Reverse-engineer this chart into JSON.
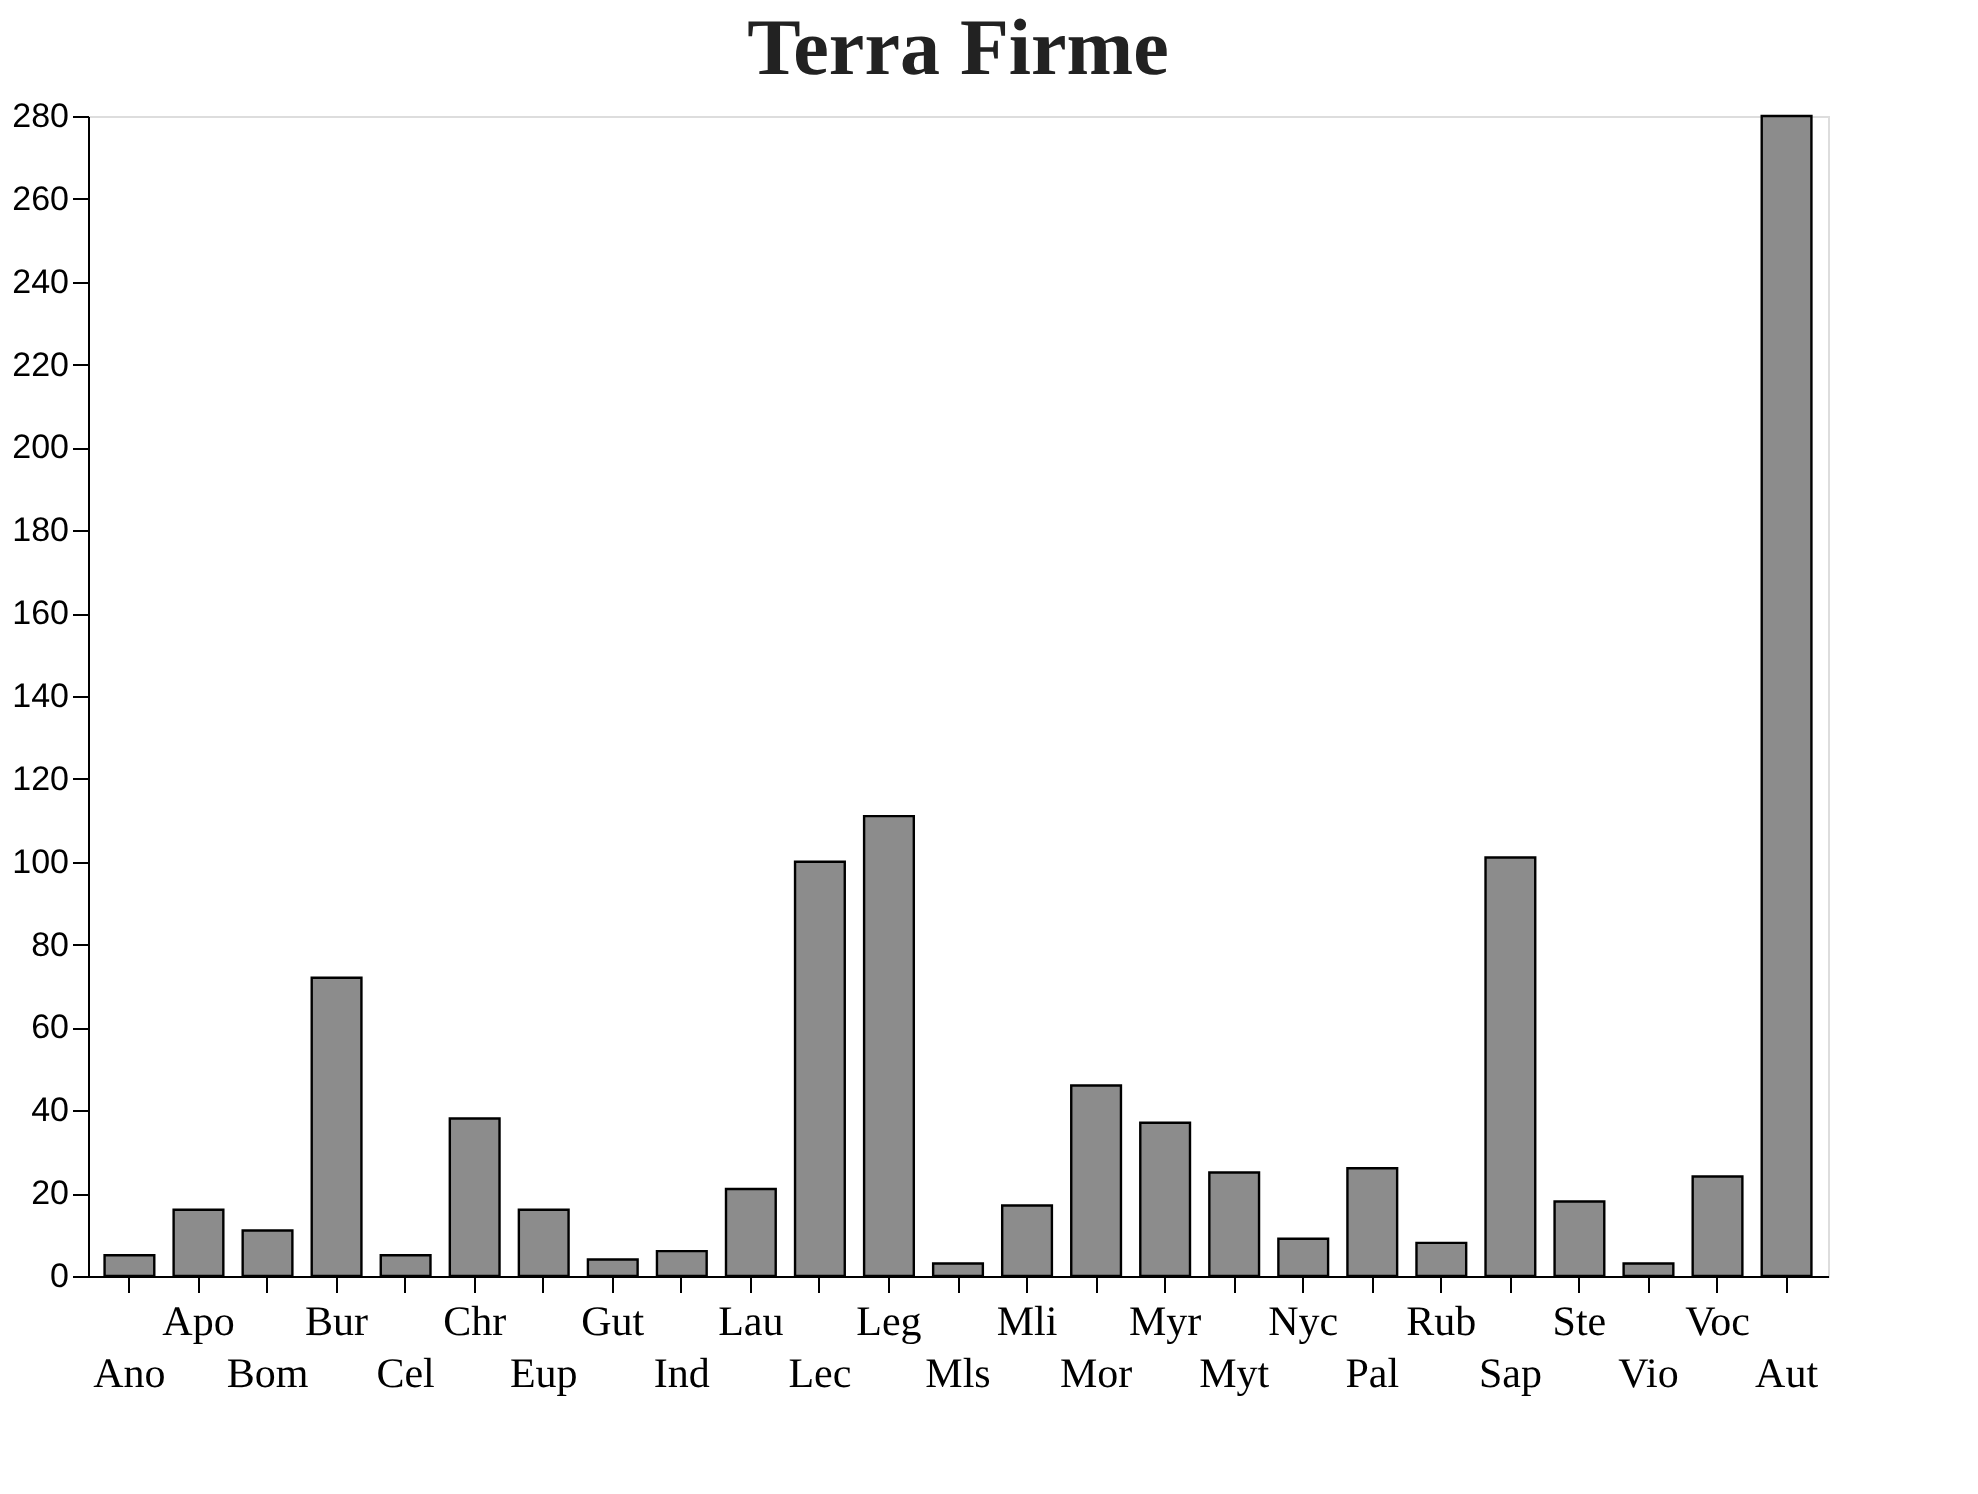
{
  "chart_data": {
    "type": "bar",
    "title": "Terra Firme",
    "categories": [
      "Ano",
      "Apo",
      "Bom",
      "Bur",
      "Cel",
      "Chr",
      "Eup",
      "Gut",
      "Ind",
      "Lau",
      "Lec",
      "Leg",
      "Mls",
      "Mli",
      "Mor",
      "Myr",
      "Myt",
      "Nyc",
      "Pal",
      "Rub",
      "Sap",
      "Ste",
      "Vio",
      "Voc",
      "Aut"
    ],
    "values": [
      5,
      16,
      11,
      72,
      5,
      38,
      16,
      4,
      6,
      21,
      100,
      111,
      3,
      17,
      46,
      37,
      25,
      9,
      26,
      8,
      101,
      18,
      3,
      24,
      280
    ],
    "color": "#8c8c8c",
    "ylim": [
      0,
      280
    ],
    "yticks": [
      0,
      20,
      40,
      60,
      80,
      100,
      120,
      140,
      160,
      180,
      200,
      220,
      240,
      260,
      280
    ],
    "grid": false
  }
}
